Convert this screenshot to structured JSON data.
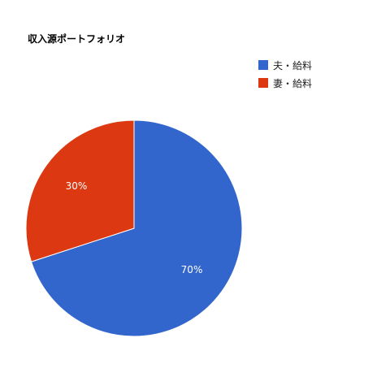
{
  "chart_data": {
    "type": "pie",
    "title": "収入源ポートフォリオ",
    "categories": [
      "夫・給料",
      "妻・給料"
    ],
    "values": [
      70,
      30
    ],
    "data_labels": [
      "70%",
      "30%"
    ],
    "colors": [
      "#3366cc",
      "#dc3912"
    ],
    "legend_position": "right",
    "legend": [
      "夫・給料",
      "妻・給料"
    ]
  }
}
